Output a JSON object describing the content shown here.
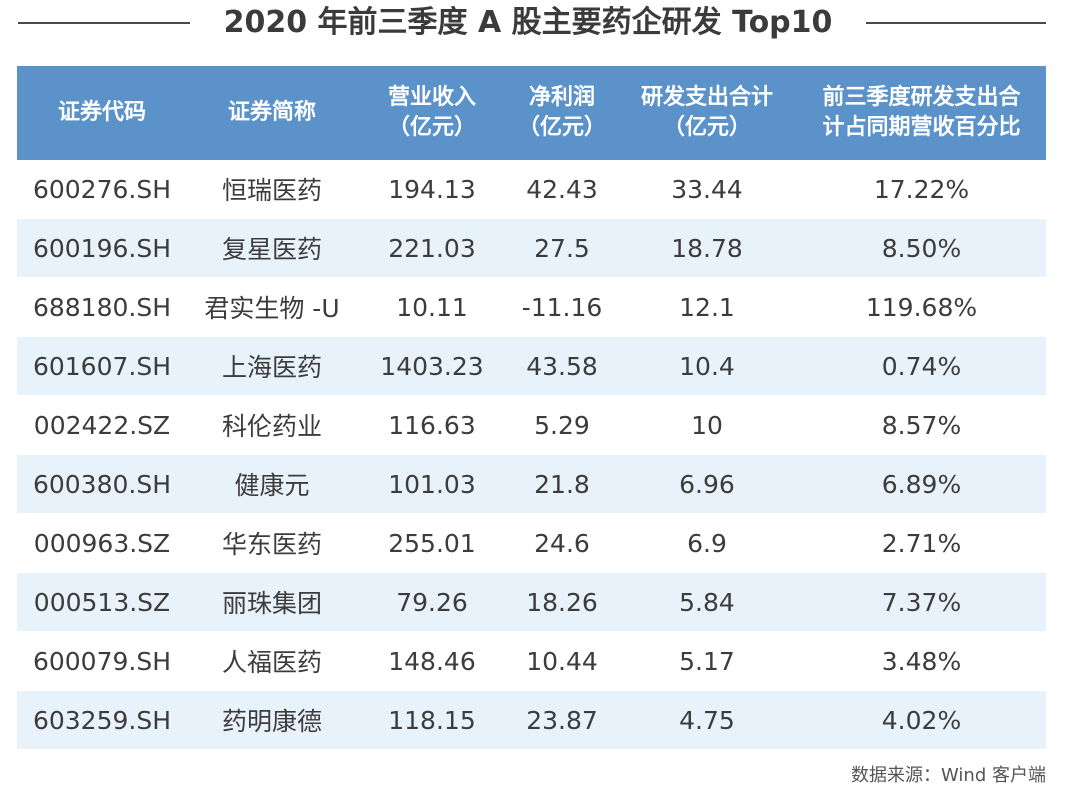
{
  "title": "2020 年前三季度 A 股主要药企研发 Top10",
  "table": {
    "headers": [
      [
        "证券代码"
      ],
      [
        "证券简称"
      ],
      [
        "营业收入",
        "（亿元）"
      ],
      [
        "净利润",
        "（亿元）"
      ],
      [
        "研发支出合计",
        "（亿元）"
      ],
      [
        "前三季度研发支出合",
        "计占同期营收百分比"
      ]
    ],
    "rows": [
      [
        "600276.SH",
        "恒瑞医药",
        "194.13",
        "42.43",
        "33.44",
        "17.22%"
      ],
      [
        "600196.SH",
        "复星医药",
        "221.03",
        "27.5",
        "18.78",
        "8.50%"
      ],
      [
        "688180.SH",
        "君实生物 -U",
        "10.11",
        "-11.16",
        "12.1",
        "119.68%"
      ],
      [
        "601607.SH",
        "上海医药",
        "1403.23",
        "43.58",
        "10.4",
        "0.74%"
      ],
      [
        "002422.SZ",
        "科伦药业",
        "116.63",
        "5.29",
        "10",
        "8.57%"
      ],
      [
        "600380.SH",
        "健康元",
        "101.03",
        "21.8",
        "6.96",
        "6.89%"
      ],
      [
        "000963.SZ",
        "华东医药",
        "255.01",
        "24.6",
        "6.9",
        "2.71%"
      ],
      [
        "000513.SZ",
        "丽珠集团",
        "79.26",
        "18.26",
        "5.84",
        "7.37%"
      ],
      [
        "600079.SH",
        "人福医药",
        "148.46",
        "10.44",
        "5.17",
        "3.48%"
      ],
      [
        "603259.SH",
        "药明康德",
        "118.15",
        "23.87",
        "4.75",
        "4.02%"
      ]
    ]
  },
  "source": "数据来源：Wind 客户端",
  "colors": {
    "header_bg": "#5b92c9",
    "stripe_bg": "#e8f2fb",
    "title_text": "#3b3b3b"
  }
}
